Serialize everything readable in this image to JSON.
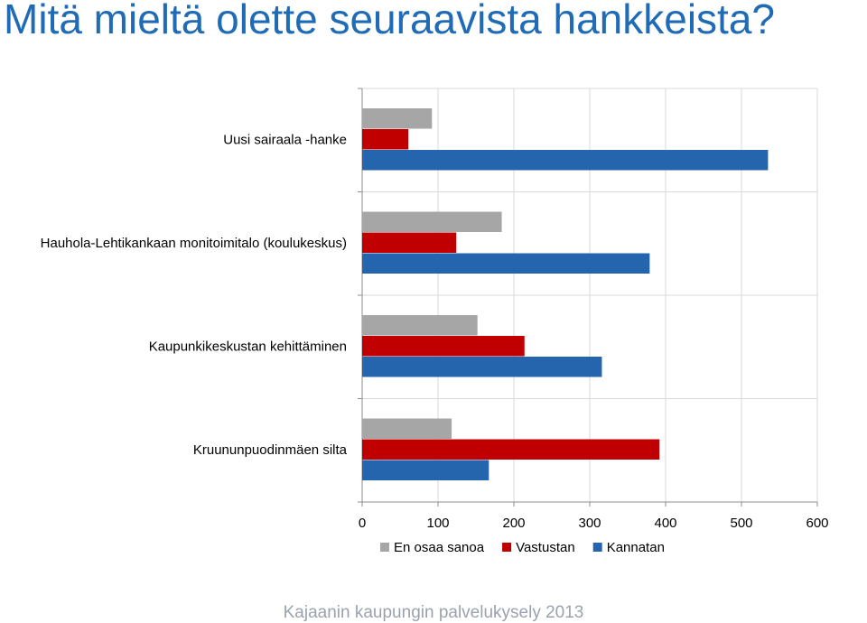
{
  "header": {
    "title": "Mitä mieltä olette seuraavista hankkeista?"
  },
  "footer": {
    "text": "Kajaanin kaupungin palvelukysely 2013"
  },
  "colors": {
    "title": "#1f6bb5",
    "en_osaa_sanoa": "#a6a6a6",
    "vastustan": "#c00000",
    "kannatan": "#2565ae",
    "footer": "#9aa3ad"
  },
  "chart_data": {
    "type": "bar",
    "orientation": "horizontal",
    "categories": [
      "Uusi sairaala -hanke",
      "Hauhola-Lehtikankaan monitoimitalo (koulukeskus)",
      "Kaupunkikeskustan kehittäminen",
      "Kruununpuodinmäen silta"
    ],
    "series": [
      {
        "name": "En osaa sanoa",
        "color": "#a6a6a6",
        "values": [
          92,
          184,
          152,
          118
        ]
      },
      {
        "name": "Vastustan",
        "color": "#c00000",
        "values": [
          61,
          124,
          214,
          392
        ]
      },
      {
        "name": "Kannatan",
        "color": "#2565ae",
        "values": [
          535,
          379,
          316,
          167
        ]
      }
    ],
    "xlim": [
      0,
      600
    ],
    "xticks": [
      0,
      100,
      200,
      300,
      400,
      500,
      600
    ],
    "grid": true,
    "legend": "bottom"
  }
}
